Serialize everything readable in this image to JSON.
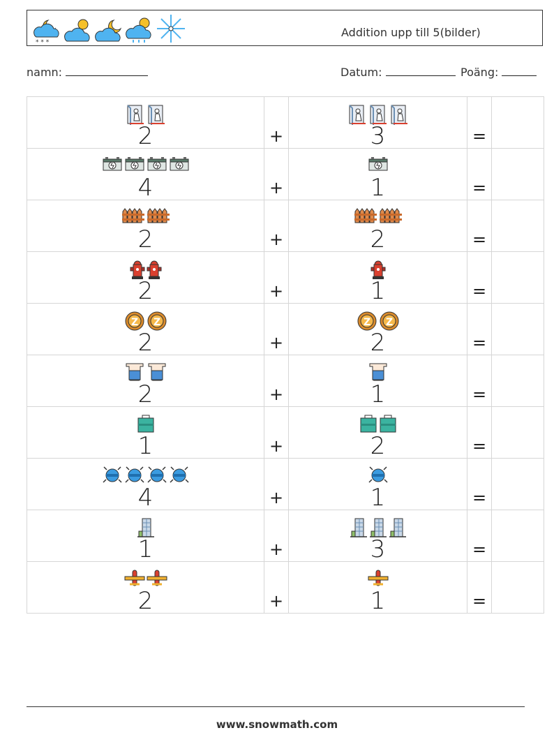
{
  "header": {
    "title": "Addition upp till 5(bilder)",
    "weather_icons": [
      "cloud-moon-snow-icon",
      "cloud-sun-icon",
      "cloud-moon-icon",
      "cloud-sun-rain-icon",
      "snowflake-icon"
    ]
  },
  "form": {
    "name_label": "namn:",
    "date_label": "Datum:",
    "score_label": "Poäng:"
  },
  "operators": {
    "plus": "+",
    "equals": "="
  },
  "problems": [
    {
      "a": "2",
      "b": "3",
      "icon": "ski-lift-icon",
      "color": "#6b8fb3"
    },
    {
      "a": "4",
      "b": "1",
      "icon": "car-battery-icon",
      "color": "#5a7a6a"
    },
    {
      "a": "2",
      "b": "2",
      "icon": "fence-icon",
      "color": "#e08a4b"
    },
    {
      "a": "2",
      "b": "1",
      "icon": "fire-hydrant-icon",
      "color": "#d9402f"
    },
    {
      "a": "2",
      "b": "2",
      "icon": "zzz-coin-icon",
      "color": "#d98a2b"
    },
    {
      "a": "2",
      "b": "1",
      "icon": "beaker-icon",
      "color": "#4a8fd6"
    },
    {
      "a": "1",
      "b": "2",
      "icon": "toolbox-icon",
      "color": "#3bb3a0"
    },
    {
      "a": "4",
      "b": "1",
      "icon": "robot-bug-icon",
      "color": "#3b9be0"
    },
    {
      "a": "1",
      "b": "3",
      "icon": "building-icon",
      "color": "#6b8fb3"
    },
    {
      "a": "2",
      "b": "1",
      "icon": "airplane-icon",
      "color": "#f0b030"
    }
  ],
  "footer": {
    "website": "www.snowmath.com"
  }
}
